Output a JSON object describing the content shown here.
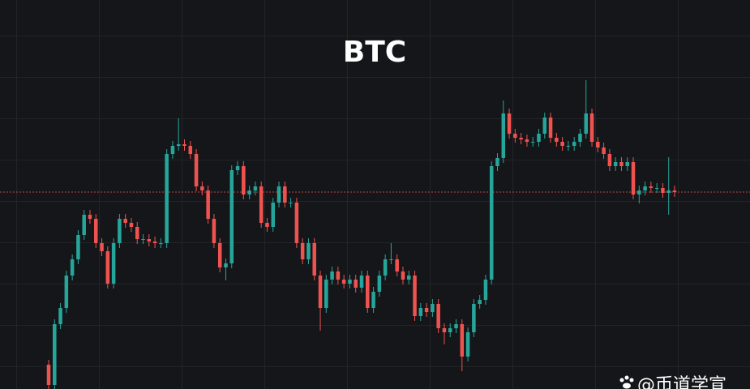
{
  "chart_data": {
    "type": "candlestick",
    "title": "BTC",
    "watermark": "@币道学宣",
    "ylim": [
      0,
      480
    ],
    "up_color": "#26a69a",
    "down_color": "#ef5350",
    "open": [
      30,
      5,
      80,
      100,
      140,
      160,
      190,
      215,
      210,
      180,
      170,
      130,
      180,
      210,
      205,
      200,
      185,
      185,
      182,
      180,
      180,
      290,
      300,
      302,
      300,
      290,
      250,
      245,
      210,
      180,
      150,
      155,
      270,
      275,
      240,
      245,
      250,
      205,
      200,
      230,
      250,
      230,
      230,
      180,
      160,
      180,
      140,
      100,
      135,
      145,
      135,
      130,
      135,
      125,
      140,
      100,
      120,
      140,
      160,
      160,
      145,
      135,
      140,
      90,
      100,
      95,
      105,
      75,
      70,
      75,
      80,
      40,
      70,
      105,
      110,
      135,
      275,
      285,
      340,
      315,
      310,
      308,
      305,
      305,
      315,
      335,
      310,
      305,
      300,
      300,
      305,
      315,
      340,
      305,
      298,
      290,
      275,
      280,
      275,
      280,
      240,
      245,
      250,
      248,
      248,
      242,
      245
    ],
    "high": [
      36,
      86,
      106,
      146,
      166,
      196,
      221,
      221,
      216,
      186,
      176,
      186,
      216,
      216,
      211,
      206,
      191,
      191,
      188,
      186,
      296,
      306,
      334,
      308,
      306,
      296,
      256,
      251,
      216,
      186,
      161,
      276,
      281,
      281,
      251,
      256,
      256,
      211,
      236,
      256,
      256,
      236,
      236,
      186,
      186,
      186,
      146,
      141,
      151,
      151,
      141,
      141,
      141,
      146,
      146,
      126,
      146,
      166,
      180,
      166,
      151,
      146,
      146,
      106,
      106,
      111,
      111,
      81,
      81,
      86,
      86,
      76,
      111,
      116,
      141,
      281,
      291,
      356,
      346,
      321,
      316,
      314,
      311,
      321,
      341,
      341,
      316,
      311,
      306,
      311,
      321,
      381,
      346,
      311,
      304,
      296,
      286,
      286,
      286,
      286,
      251,
      256,
      256,
      254,
      254,
      286,
      251
    ],
    "low": [
      0,
      0,
      74,
      94,
      134,
      154,
      184,
      204,
      174,
      164,
      124,
      124,
      174,
      199,
      194,
      179,
      179,
      176,
      174,
      174,
      174,
      284,
      294,
      294,
      284,
      244,
      239,
      204,
      174,
      144,
      134,
      149,
      264,
      234,
      234,
      239,
      199,
      194,
      194,
      224,
      224,
      224,
      174,
      154,
      154,
      134,
      72,
      94,
      129,
      129,
      124,
      124,
      119,
      119,
      94,
      94,
      114,
      134,
      154,
      139,
      129,
      129,
      84,
      84,
      89,
      89,
      69,
      55,
      64,
      69,
      22,
      34,
      64,
      99,
      104,
      129,
      269,
      279,
      309,
      304,
      302,
      299,
      299,
      299,
      309,
      304,
      299,
      294,
      294,
      294,
      299,
      309,
      299,
      292,
      284,
      269,
      269,
      269,
      269,
      234,
      229,
      239,
      242,
      242,
      236,
      215,
      237
    ],
    "close": [
      5,
      80,
      100,
      140,
      160,
      190,
      215,
      210,
      180,
      170,
      130,
      180,
      210,
      205,
      200,
      185,
      185,
      182,
      180,
      180,
      290,
      300,
      302,
      300,
      290,
      250,
      245,
      210,
      180,
      150,
      155,
      270,
      275,
      240,
      245,
      250,
      205,
      200,
      230,
      250,
      230,
      230,
      180,
      160,
      180,
      140,
      100,
      135,
      145,
      135,
      130,
      135,
      125,
      140,
      100,
      120,
      140,
      160,
      160,
      145,
      135,
      140,
      90,
      100,
      95,
      105,
      75,
      70,
      75,
      80,
      40,
      70,
      105,
      110,
      135,
      275,
      285,
      340,
      315,
      310,
      308,
      305,
      305,
      315,
      335,
      310,
      305,
      300,
      300,
      305,
      315,
      340,
      305,
      298,
      290,
      275,
      280,
      275,
      280,
      240,
      245,
      250,
      248,
      248,
      242,
      245,
      243
    ]
  }
}
